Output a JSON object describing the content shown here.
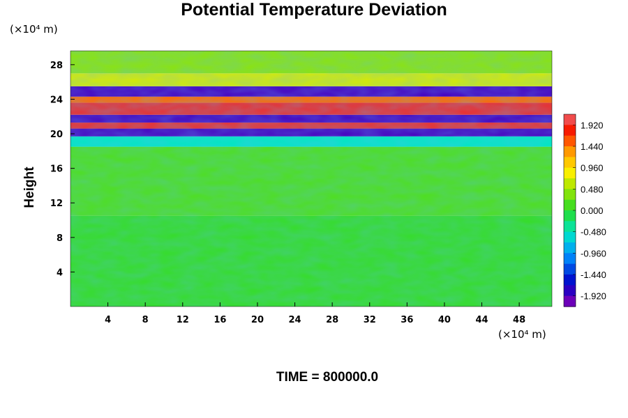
{
  "chart_data": {
    "type": "heatmap",
    "title": "Potential Temperature Deviation",
    "ylabel": "Height",
    "xlabel": "",
    "y_unit": "(×10⁴ m)",
    "x_unit": "(×10⁴ m)",
    "x_ticks": [
      "4",
      "8",
      "12",
      "16",
      "20",
      "24",
      "28",
      "32",
      "36",
      "40",
      "44",
      "48"
    ],
    "y_ticks": [
      "4",
      "8",
      "12",
      "16",
      "20",
      "24",
      "28"
    ],
    "xlim": [
      0,
      51.5
    ],
    "ylim": [
      0,
      29.6
    ],
    "colorbar": {
      "ticks": [
        "1.920",
        "1.440",
        "0.960",
        "0.480",
        "0.000",
        "-0.480",
        "-0.960",
        "-1.440",
        "-1.920"
      ],
      "range": [
        -2.16,
        2.16
      ]
    },
    "bands": [
      {
        "y": [
          0,
          10.5
        ],
        "value": 0.05
      },
      {
        "y": [
          10.5,
          18.5
        ],
        "value": 0.15
      },
      {
        "y": [
          18.5,
          19.7
        ],
        "value": -0.5
      },
      {
        "y": [
          19.7,
          20.6
        ],
        "value": -1.9
      },
      {
        "y": [
          20.6,
          21.3
        ],
        "value": 2.0
      },
      {
        "y": [
          21.3,
          22.2
        ],
        "value": -1.9
      },
      {
        "y": [
          22.2,
          23.6
        ],
        "value": 2.0
      },
      {
        "y": [
          23.6,
          24.3
        ],
        "value": 1.5
      },
      {
        "y": [
          24.3,
          25.5
        ],
        "value": -1.9
      },
      {
        "y": [
          25.5,
          27.0
        ],
        "value": 0.7
      },
      {
        "y": [
          27.0,
          29.6
        ],
        "value": 0.4
      }
    ]
  },
  "footer_text": "TIME = 800000.0"
}
